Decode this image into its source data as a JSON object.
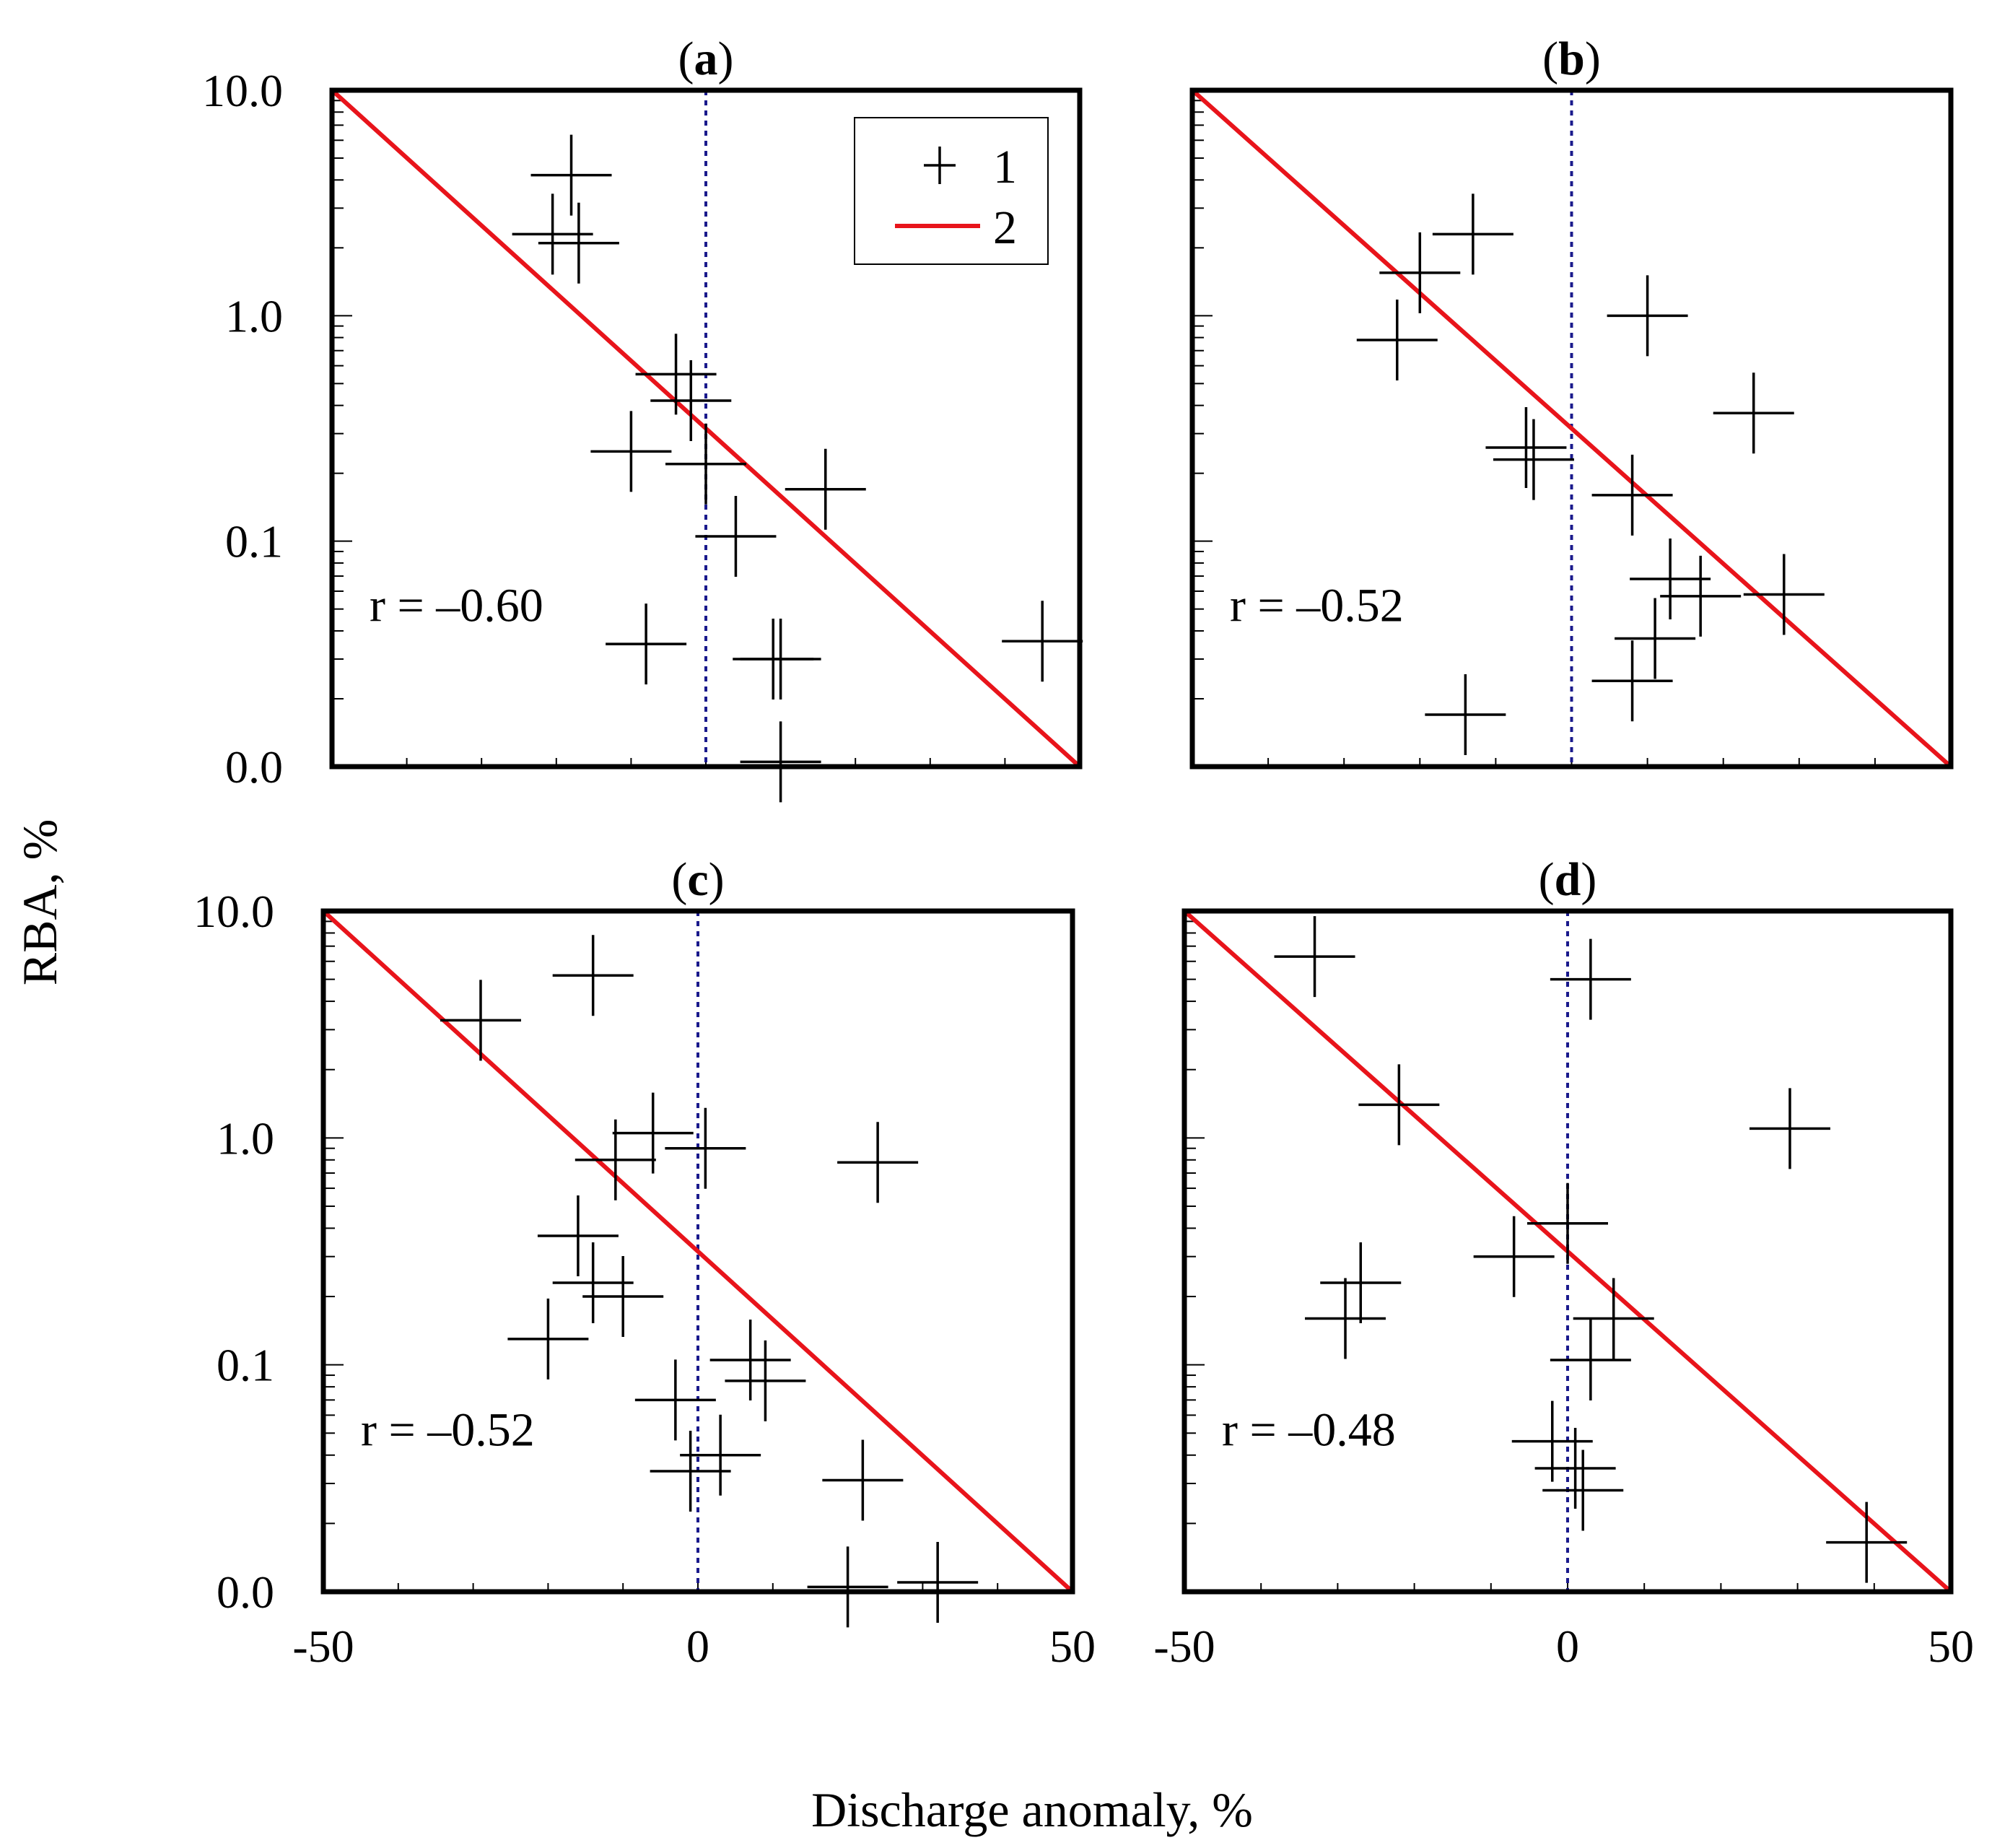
{
  "figure": {
    "ylabel": "RBA, %",
    "xlabel": "Discharge  anomaly, %",
    "legend": [
      {
        "key": "marker",
        "label": "1"
      },
      {
        "key": "line",
        "label": "2"
      }
    ],
    "colors": {
      "regression": "#e8141b",
      "zero_line": "#1a1a8c",
      "frame": "#000000",
      "markers": "#000000"
    }
  },
  "chart_data": [
    {
      "type": "scatter",
      "panel": "(a)",
      "title_bold": "a",
      "annotation": "r = –0.60",
      "xlim": [
        -50,
        50
      ],
      "ylim_log": [
        0.01,
        10
      ],
      "y_scale": "log",
      "ytick_labels": [
        "10.0",
        "1.0",
        "0.1",
        "0.0"
      ],
      "legend_shown": true,
      "legend_placement": "top-right",
      "regression": {
        "x": [
          -50,
          50
        ],
        "y": [
          10,
          0.01
        ]
      },
      "points": [
        {
          "x": -18,
          "y": 4.2
        },
        {
          "x": -20.5,
          "y": 2.3
        },
        {
          "x": -17,
          "y": 2.1
        },
        {
          "x": -4,
          "y": 0.55
        },
        {
          "x": -2,
          "y": 0.42
        },
        {
          "x": -10,
          "y": 0.25
        },
        {
          "x": 0,
          "y": 0.22
        },
        {
          "x": 16,
          "y": 0.17
        },
        {
          "x": 4,
          "y": 0.105
        },
        {
          "x": -8,
          "y": 0.035
        },
        {
          "x": 9,
          "y": 0.03
        },
        {
          "x": 10,
          "y": 0.03
        },
        {
          "x": 45,
          "y": 0.036
        },
        {
          "x": 10,
          "y": 0.0105
        }
      ]
    },
    {
      "type": "scatter",
      "panel": "(b)",
      "title_bold": "b",
      "annotation": "r = –0.52",
      "xlim": [
        -50,
        50
      ],
      "ylim_log": [
        0.01,
        10
      ],
      "y_scale": "log",
      "ytick_labels": [],
      "legend_shown": false,
      "regression": {
        "x": [
          -50,
          50
        ],
        "y": [
          10,
          0.01
        ]
      },
      "points": [
        {
          "x": -13,
          "y": 2.3
        },
        {
          "x": -20,
          "y": 1.55
        },
        {
          "x": -23,
          "y": 0.78
        },
        {
          "x": 10,
          "y": 1.0
        },
        {
          "x": 24,
          "y": 0.37
        },
        {
          "x": -6,
          "y": 0.26
        },
        {
          "x": -5,
          "y": 0.23
        },
        {
          "x": 8,
          "y": 0.16
        },
        {
          "x": 13,
          "y": 0.068
        },
        {
          "x": 17,
          "y": 0.057
        },
        {
          "x": 28,
          "y": 0.058
        },
        {
          "x": 11,
          "y": 0.037
        },
        {
          "x": 8,
          "y": 0.024
        },
        {
          "x": -14,
          "y": 0.017
        }
      ]
    },
    {
      "type": "scatter",
      "panel": "(c)",
      "title_bold": "c",
      "annotation": "r = –0.52",
      "xlim": [
        -50,
        50
      ],
      "ylim_log": [
        0.01,
        10
      ],
      "y_scale": "log",
      "ytick_labels": [
        "10.0",
        "1.0",
        "0.1",
        "0.0"
      ],
      "legend_shown": false,
      "regression": {
        "x": [
          -50,
          50
        ],
        "y": [
          10,
          0.01
        ]
      },
      "points": [
        {
          "x": -14,
          "y": 5.2
        },
        {
          "x": -29,
          "y": 3.3
        },
        {
          "x": -6,
          "y": 1.05
        },
        {
          "x": 1,
          "y": 0.9
        },
        {
          "x": -11,
          "y": 0.8
        },
        {
          "x": 24,
          "y": 0.78
        },
        {
          "x": -16,
          "y": 0.37
        },
        {
          "x": -14,
          "y": 0.23
        },
        {
          "x": -10,
          "y": 0.2
        },
        {
          "x": -20,
          "y": 0.13
        },
        {
          "x": 7,
          "y": 0.105
        },
        {
          "x": 9,
          "y": 0.085
        },
        {
          "x": -3,
          "y": 0.07
        },
        {
          "x": 3,
          "y": 0.04
        },
        {
          "x": -1,
          "y": 0.034
        },
        {
          "x": 22,
          "y": 0.031
        },
        {
          "x": 20,
          "y": 0.0105
        },
        {
          "x": 32,
          "y": 0.011
        }
      ]
    },
    {
      "type": "scatter",
      "panel": "(d)",
      "title_bold": "d",
      "annotation": "r = –0.48",
      "xlim": [
        -50,
        50
      ],
      "ylim_log": [
        0.01,
        10
      ],
      "y_scale": "log",
      "ytick_labels": [],
      "legend_shown": false,
      "regression": {
        "x": [
          -50,
          50
        ],
        "y": [
          10,
          0.01
        ]
      },
      "points": [
        {
          "x": -33,
          "y": 6.3
        },
        {
          "x": 3,
          "y": 5.0
        },
        {
          "x": -22,
          "y": 1.4
        },
        {
          "x": 29,
          "y": 1.1
        },
        {
          "x": 0,
          "y": 0.42
        },
        {
          "x": -7,
          "y": 0.3
        },
        {
          "x": -27,
          "y": 0.23
        },
        {
          "x": -29,
          "y": 0.16
        },
        {
          "x": 6,
          "y": 0.16
        },
        {
          "x": 3,
          "y": 0.105
        },
        {
          "x": -2,
          "y": 0.046
        },
        {
          "x": 1,
          "y": 0.035
        },
        {
          "x": 2,
          "y": 0.028
        },
        {
          "x": 39,
          "y": 0.0165
        }
      ]
    }
  ],
  "x_tick_labels": [
    "-50",
    "0",
    "50"
  ]
}
